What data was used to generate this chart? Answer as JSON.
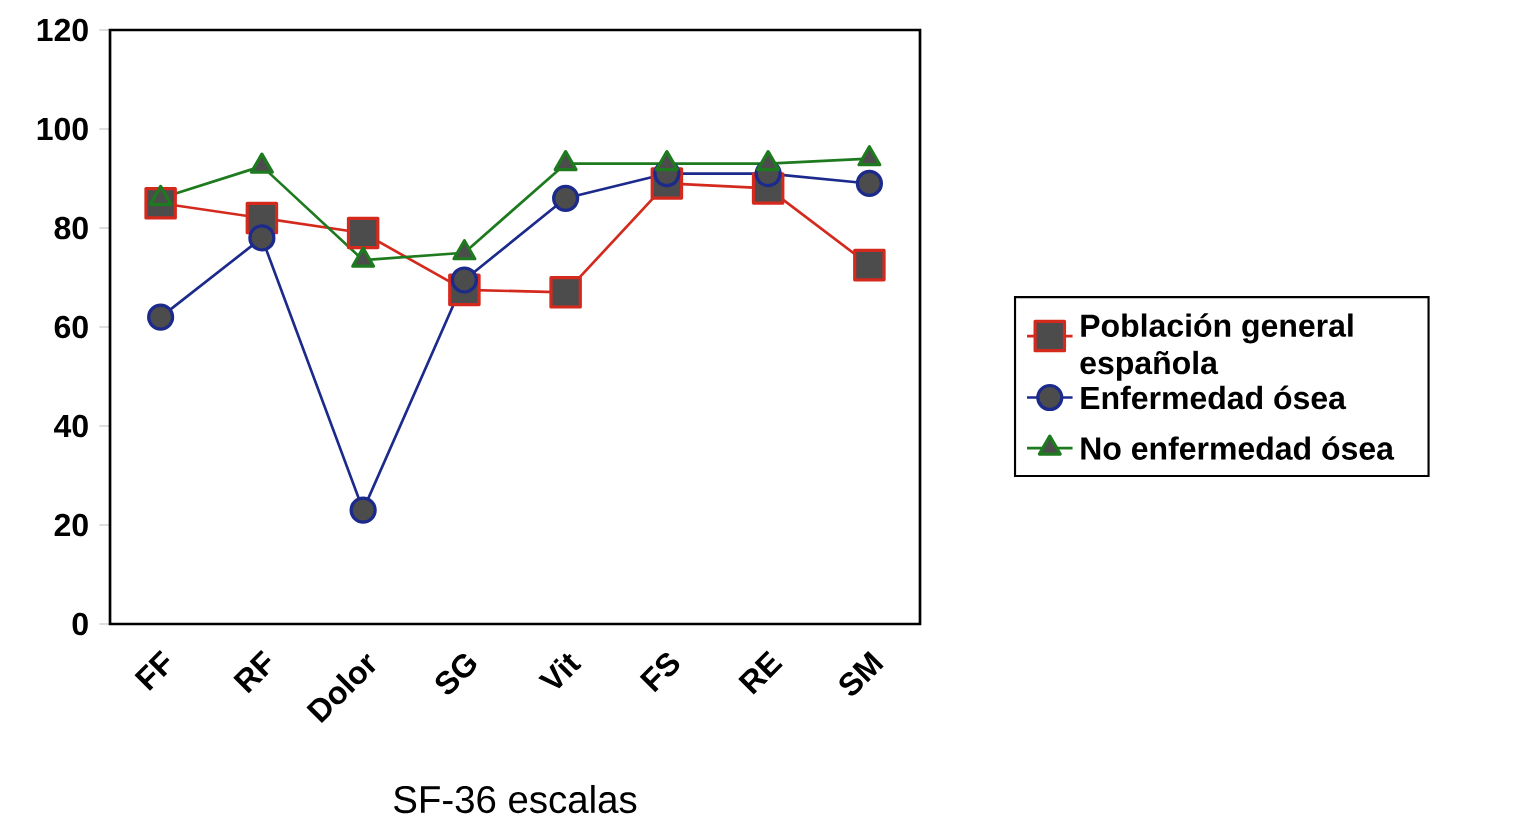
{
  "chart_data": {
    "type": "line",
    "xlabel": "SF-36 escalas",
    "categories": [
      "FF",
      "RF",
      "Dolor",
      "SG",
      "Vit",
      "FS",
      "RE",
      "SM"
    ],
    "ylim": [
      0,
      120
    ],
    "yticks": [
      0,
      20,
      40,
      60,
      80,
      100,
      120
    ],
    "grid": false,
    "legend": "right",
    "series": [
      {
        "name": "Población general española",
        "color": "#d42a1e",
        "marker": "square",
        "values": [
          85,
          82,
          79,
          67.5,
          67,
          89,
          88,
          72.5
        ]
      },
      {
        "name": "Enfermedad ósea",
        "color": "#1c2a8c",
        "marker": "circle",
        "values": [
          62,
          78,
          23,
          69.5,
          86,
          91,
          91,
          89
        ]
      },
      {
        "name": "No enfermedad ósea",
        "color": "#1e7a1e",
        "marker": "triangle",
        "values": [
          86,
          92.5,
          73.5,
          75,
          93,
          93,
          93,
          94
        ]
      }
    ]
  }
}
